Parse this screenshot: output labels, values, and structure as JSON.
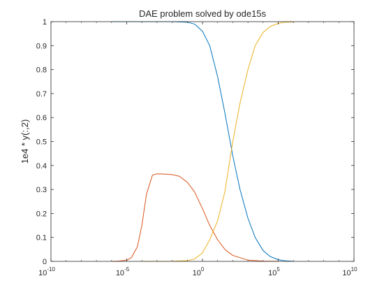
{
  "chart_data": {
    "type": "line",
    "title": "DAE problem solved by ode15s",
    "xlabel": "",
    "ylabel": "1e4 * y(:,2)",
    "xscale": "log",
    "xlim": [
      1e-10,
      10000000000.0
    ],
    "ylim": [
      0,
      1
    ],
    "grid": false,
    "legend": "none",
    "x_ticks": [
      {
        "base": "10",
        "exp": "-10",
        "value": 1e-10
      },
      {
        "base": "10",
        "exp": "-5",
        "value": 1e-05
      },
      {
        "base": "10",
        "exp": "0",
        "value": 1
      },
      {
        "base": "10",
        "exp": "5",
        "value": 100000.0
      },
      {
        "base": "10",
        "exp": "10",
        "value": 10000000000.0
      }
    ],
    "y_ticks": [
      "0",
      "0.1",
      "0.2",
      "0.3",
      "0.4",
      "0.5",
      "0.6",
      "0.7",
      "0.8",
      "0.9",
      "1"
    ],
    "series": [
      {
        "color": "#0072BD",
        "x": [
          1e-06,
          0.0001,
          0.01,
          0.1,
          0.3,
          1,
          3,
          10,
          30,
          100,
          300,
          1000,
          3000,
          10000,
          30000,
          100000,
          300000,
          1000000
        ],
        "y": [
          1.0,
          1.0,
          0.9999,
          0.998,
          0.99,
          0.96,
          0.9,
          0.77,
          0.62,
          0.44,
          0.3,
          0.18,
          0.1,
          0.045,
          0.02,
          0.007,
          0.002,
          0.0005
        ]
      },
      {
        "color": "#D95319",
        "x": [
          1e-06,
          3e-06,
          1e-05,
          2e-05,
          5e-05,
          0.0001,
          0.0002,
          0.0005,
          0.001,
          0.003,
          0.01,
          0.03,
          0.1,
          0.3,
          1,
          3,
          10,
          30,
          100,
          1000,
          10000,
          100000
        ],
        "y": [
          0.0,
          0.001,
          0.005,
          0.015,
          0.06,
          0.15,
          0.28,
          0.36,
          0.365,
          0.364,
          0.362,
          0.355,
          0.33,
          0.29,
          0.22,
          0.15,
          0.09,
          0.05,
          0.025,
          0.005,
          0.001,
          0.0002
        ]
      },
      {
        "color": "#EDB120",
        "x": [
          0.0001,
          0.01,
          0.1,
          0.3,
          1,
          3,
          10,
          30,
          100,
          300,
          1000,
          3000,
          10000,
          30000,
          100000,
          300000,
          1000000
        ],
        "y": [
          0.0,
          0.0005,
          0.003,
          0.01,
          0.035,
          0.09,
          0.17,
          0.29,
          0.5,
          0.66,
          0.8,
          0.9,
          0.955,
          0.98,
          0.993,
          0.998,
          0.999
        ]
      }
    ]
  }
}
